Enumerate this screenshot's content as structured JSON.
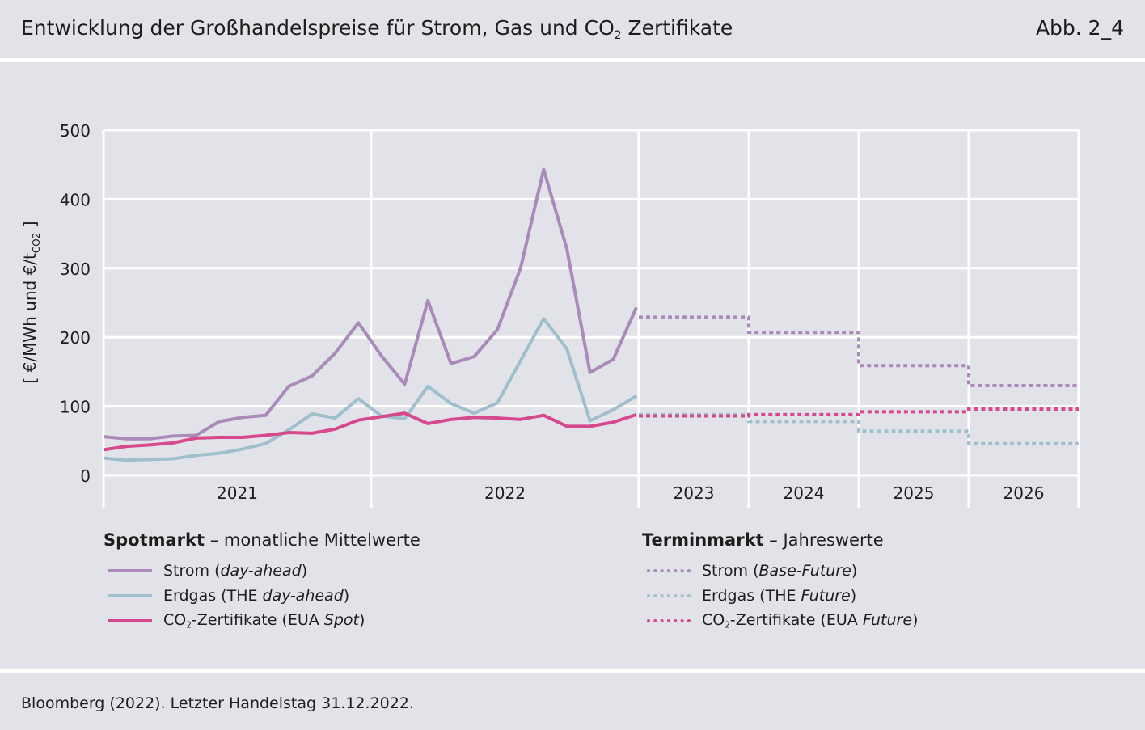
{
  "header": {
    "title_pre": "Entwicklung der Großhandelspreise für Strom, Gas und CO",
    "title_sub": "2",
    "title_post": " Zertifikate",
    "figure_no": "Abb. 2_4"
  },
  "chart_data": {
    "type": "line",
    "ylabel": "[ €/MWh und €/t",
    "ylabel_sub": "CO2",
    "ylabel_end": " ]",
    "ylim": [
      0,
      500
    ],
    "yticks": [
      0,
      100,
      200,
      300,
      400,
      500
    ],
    "grid": true,
    "period_labels": [
      "2021",
      "2022",
      "2023",
      "2024",
      "2025",
      "2026"
    ],
    "spot_months": [
      "2021-01",
      "2021-02",
      "2021-03",
      "2021-04",
      "2021-05",
      "2021-06",
      "2021-07",
      "2021-08",
      "2021-09",
      "2021-10",
      "2021-11",
      "2021-12",
      "2022-01",
      "2022-02",
      "2022-03",
      "2022-04",
      "2022-05",
      "2022-06",
      "2022-07",
      "2022-08",
      "2022-09",
      "2022-10",
      "2022-11",
      "2022-12"
    ],
    "spot_series": [
      {
        "name": "Strom (day-ahead)",
        "color": "#a98ab8",
        "values": [
          56,
          53,
          53,
          57,
          58,
          78,
          84,
          87,
          129,
          144,
          177,
          221,
          173,
          132,
          253,
          162,
          172,
          211,
          300,
          443,
          328,
          149,
          168,
          243
        ]
      },
      {
        "name": "Erdgas (THE day-ahead)",
        "color": "#9fbfcc",
        "values": [
          25,
          22,
          23,
          24,
          29,
          32,
          38,
          46,
          66,
          89,
          83,
          111,
          86,
          82,
          129,
          104,
          90,
          105,
          166,
          227,
          183,
          79,
          95,
          115
        ]
      },
      {
        "name": "CO2-Zertifikate (EUA Spot)",
        "color": "#d6498c",
        "values": [
          37,
          42,
          44,
          47,
          54,
          55,
          55,
          58,
          62,
          61,
          67,
          80,
          85,
          90,
          75,
          81,
          84,
          83,
          81,
          87,
          71,
          71,
          77,
          88
        ]
      }
    ],
    "future_years": [
      "2023",
      "2024",
      "2025",
      "2026"
    ],
    "future_series": [
      {
        "name": "Strom (Base-Future)",
        "color": "#a98ab8",
        "values": [
          229,
          207,
          159,
          130
        ]
      },
      {
        "name": "Erdgas (THE Future)",
        "color": "#9fbfcc",
        "values": [
          88,
          78,
          64,
          46
        ]
      },
      {
        "name": "CO2-Zertifikate (EUA Future)",
        "color": "#d6498c",
        "values": [
          86,
          88,
          92,
          96
        ]
      }
    ]
  },
  "legend": {
    "spot": {
      "title_bold": "Spotmarkt",
      "title_rest": " – monatliche Mittelwerte",
      "items": [
        {
          "pre": "Strom (",
          "em": "day-ahead",
          "post": ")",
          "color": "#a98ab8"
        },
        {
          "pre": "Erdgas (THE ",
          "em": "day-ahead",
          "post": ")",
          "color": "#9fbfcc"
        },
        {
          "pre": "CO",
          "sub": "2",
          "pre2": "-Zertifikate (EUA ",
          "em": "Spot",
          "post": ")",
          "color": "#d6498c"
        }
      ]
    },
    "future": {
      "title_bold": "Terminmarkt",
      "title_rest": " – Jahreswerte",
      "items": [
        {
          "pre": "Strom (",
          "em": "Base-Future",
          "post": ")",
          "color": "#a98ab8"
        },
        {
          "pre": "Erdgas (THE ",
          "em": "Future",
          "post": ")",
          "color": "#9fbfcc"
        },
        {
          "pre": "CO",
          "sub": "2",
          "pre2": "-Zertifikate (EUA ",
          "em": "Future",
          "post": ")",
          "color": "#d6498c"
        }
      ]
    }
  },
  "footer": {
    "source": "Bloomberg (2022). Letzter Handelstag 31.12.2022."
  }
}
